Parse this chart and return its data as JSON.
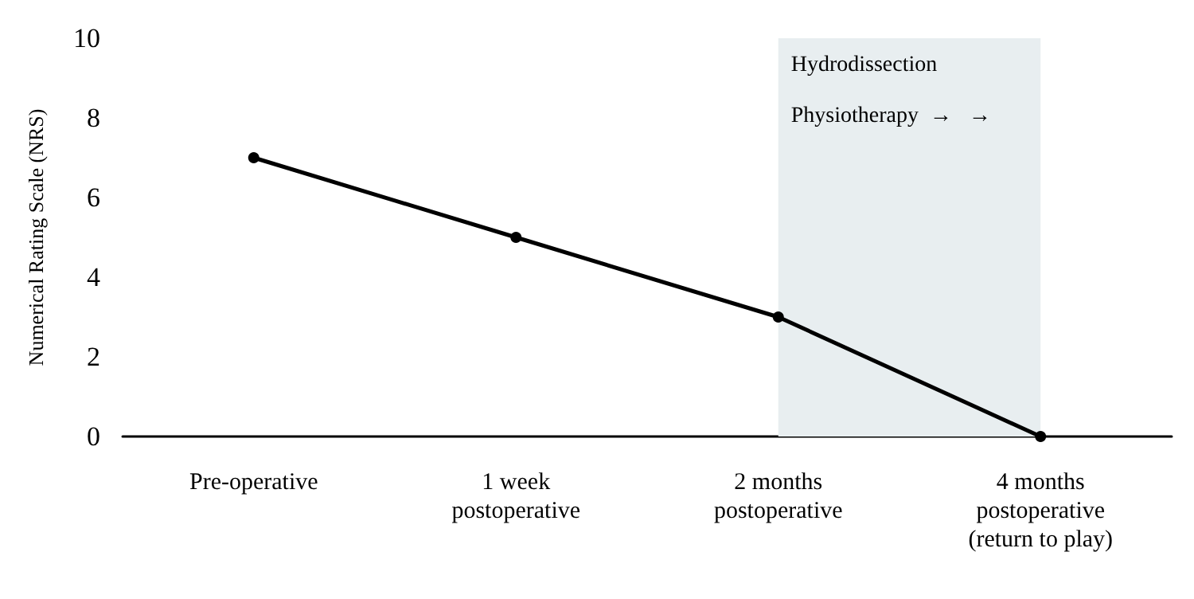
{
  "chart_data": {
    "type": "line",
    "ylabel": "Numerical Rating Scale (NRS)",
    "categories": [
      "Pre-operative",
      "1 week\npostoperative",
      "2 months\npostoperative",
      "4 months\npostoperative\n(return to play)"
    ],
    "series": [
      {
        "color": "#000000",
        "values": [
          7,
          5,
          3,
          0
        ]
      }
    ],
    "ylim": [
      0,
      10
    ],
    "yticks": [
      0,
      2,
      4,
      6,
      8,
      10
    ],
    "grid": false,
    "marker": "circle",
    "line_style": "solid",
    "bands": [
      {
        "axis": "x",
        "from": "2 months\npostoperative",
        "to": "4 months\npostoperative\n(return to play)",
        "color": "#e8eef0"
      }
    ],
    "annotations": [
      "Hydrodissection",
      "Physiotherapy  →   →"
    ]
  }
}
